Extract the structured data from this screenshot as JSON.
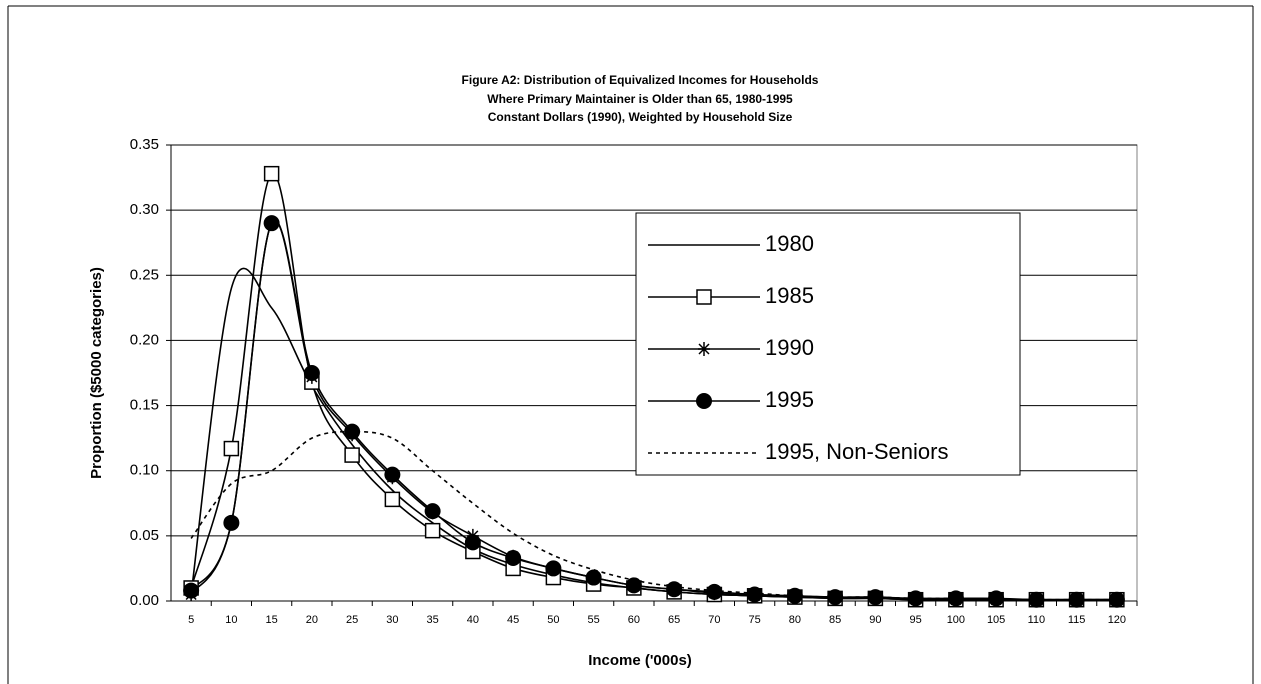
{
  "chart_data": {
    "type": "line",
    "title": [
      "Figure A2: Distribution of Equivalized Incomes for Households",
      "Where Primary Maintainer is Older than 65, 1980-1995",
      "Constant Dollars (1990), Weighted by Household Size"
    ],
    "x_label": "Income ('000s)",
    "y_label": "Proportion ($5000 categories)",
    "categories": [
      "5",
      "10",
      "15",
      "20",
      "25",
      "30",
      "35",
      "40",
      "45",
      "50",
      "55",
      "60",
      "65",
      "70",
      "75",
      "80",
      "85",
      "90",
      "95",
      "100",
      "105",
      "110",
      "115",
      "120"
    ],
    "ylim": [
      0,
      0.35
    ],
    "yticks": [
      {
        "value": 0,
        "label": "0.00"
      },
      {
        "value": 0.05,
        "label": "0.05"
      },
      {
        "value": 0.1,
        "label": "0.10"
      },
      {
        "value": 0.15,
        "label": "0.15"
      },
      {
        "value": 0.2,
        "label": "0.20"
      },
      {
        "value": 0.25,
        "label": "0.25"
      },
      {
        "value": 0.3,
        "label": "0.30"
      },
      {
        "value": 0.35,
        "label": "0.35"
      }
    ],
    "grid": true,
    "legend": "right",
    "series": [
      {
        "name": "1980",
        "color": "#000000",
        "marker": "none",
        "dash": false,
        "values": [
          0.005,
          0.24,
          0.225,
          0.165,
          0.12,
          0.085,
          0.06,
          0.04,
          0.028,
          0.02,
          0.014,
          0.01,
          0.007,
          0.005,
          0.004,
          0.003,
          0.002,
          0.002,
          0.001,
          0.001,
          0.001,
          0.001,
          0.001,
          0.001
        ]
      },
      {
        "name": "1985",
        "color": "#000000",
        "marker": "square",
        "dash": false,
        "values": [
          0.01,
          0.117,
          0.328,
          0.168,
          0.112,
          0.078,
          0.054,
          0.038,
          0.025,
          0.018,
          0.013,
          0.01,
          0.007,
          0.005,
          0.004,
          0.003,
          0.002,
          0.002,
          0.001,
          0.001,
          0.001,
          0.001,
          0.001,
          0.001
        ]
      },
      {
        "name": "1990",
        "color": "#000000",
        "marker": "star",
        "dash": false,
        "values": [
          0.005,
          0.06,
          0.29,
          0.172,
          0.128,
          0.095,
          0.068,
          0.05,
          0.034,
          0.025,
          0.018,
          0.012,
          0.009,
          0.006,
          0.004,
          0.003,
          0.003,
          0.002,
          0.002,
          0.001,
          0.001,
          0.001,
          0.001,
          0.001
        ]
      },
      {
        "name": "1995",
        "color": "#000000",
        "marker": "circle",
        "dash": false,
        "values": [
          0.008,
          0.06,
          0.29,
          0.175,
          0.13,
          0.097,
          0.069,
          0.045,
          0.033,
          0.025,
          0.018,
          0.012,
          0.009,
          0.007,
          0.005,
          0.004,
          0.003,
          0.003,
          0.002,
          0.002,
          0.002,
          0.001,
          0.001,
          0.001
        ]
      },
      {
        "name": "1995, Non-Seniors",
        "color": "#000000",
        "marker": "none",
        "dash": true,
        "values": [
          0.048,
          0.09,
          0.1,
          0.125,
          0.13,
          0.125,
          0.1,
          0.075,
          0.052,
          0.035,
          0.024,
          0.016,
          0.011,
          0.008,
          0.006,
          0.004,
          0.003,
          0.003,
          0.002,
          0.002,
          0.001,
          0.001,
          0.001,
          0.001
        ]
      }
    ]
  }
}
